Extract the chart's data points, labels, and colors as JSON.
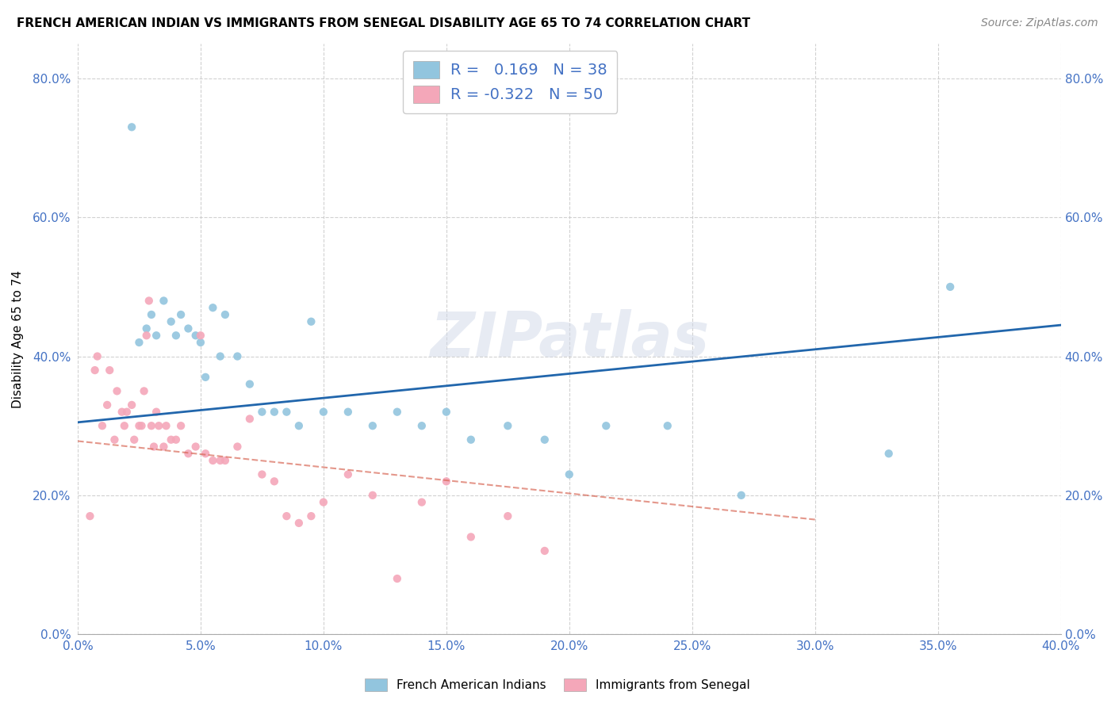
{
  "title": "FRENCH AMERICAN INDIAN VS IMMIGRANTS FROM SENEGAL DISABILITY AGE 65 TO 74 CORRELATION CHART",
  "source": "Source: ZipAtlas.com",
  "xlabel_ticks": [
    "0.0%",
    "5.0%",
    "10.0%",
    "15.0%",
    "20.0%",
    "25.0%",
    "30.0%",
    "35.0%",
    "40.0%"
  ],
  "ylabel_ticks": [
    "0.0%",
    "20.0%",
    "40.0%",
    "60.0%",
    "80.0%"
  ],
  "ylabel": "Disability Age 65 to 74",
  "xlim": [
    0.0,
    0.4
  ],
  "ylim": [
    0.0,
    0.85
  ],
  "legend_label1": "French American Indians",
  "legend_label2": "Immigrants from Senegal",
  "r1": 0.169,
  "n1": 38,
  "r2": -0.322,
  "n2": 50,
  "color_blue": "#92c5de",
  "color_pink": "#f4a7b9",
  "color_line_blue": "#2166ac",
  "color_line_pink": "#d6604d",
  "watermark": "ZIPatlas",
  "blue_line_x0": 0.0,
  "blue_line_y0": 0.305,
  "blue_line_x1": 0.4,
  "blue_line_y1": 0.445,
  "pink_line_x0": 0.0,
  "pink_line_y0": 0.278,
  "pink_line_x1": 0.3,
  "pink_line_y1": 0.165,
  "blue_points_x": [
    0.022,
    0.025,
    0.028,
    0.03,
    0.032,
    0.035,
    0.038,
    0.04,
    0.042,
    0.045,
    0.048,
    0.05,
    0.052,
    0.055,
    0.058,
    0.06,
    0.065,
    0.07,
    0.075,
    0.08,
    0.085,
    0.09,
    0.095,
    0.1,
    0.11,
    0.12,
    0.13,
    0.14,
    0.15,
    0.16,
    0.175,
    0.19,
    0.2,
    0.215,
    0.24,
    0.27,
    0.33,
    0.355
  ],
  "blue_points_y": [
    0.73,
    0.42,
    0.44,
    0.46,
    0.43,
    0.48,
    0.45,
    0.43,
    0.46,
    0.44,
    0.43,
    0.42,
    0.37,
    0.47,
    0.4,
    0.46,
    0.4,
    0.36,
    0.32,
    0.32,
    0.32,
    0.3,
    0.45,
    0.32,
    0.32,
    0.3,
    0.32,
    0.3,
    0.32,
    0.28,
    0.3,
    0.28,
    0.23,
    0.3,
    0.3,
    0.2,
    0.26,
    0.5
  ],
  "pink_points_x": [
    0.005,
    0.007,
    0.008,
    0.01,
    0.012,
    0.013,
    0.015,
    0.016,
    0.018,
    0.019,
    0.02,
    0.022,
    0.023,
    0.025,
    0.026,
    0.027,
    0.028,
    0.029,
    0.03,
    0.031,
    0.032,
    0.033,
    0.035,
    0.036,
    0.038,
    0.04,
    0.042,
    0.045,
    0.048,
    0.05,
    0.052,
    0.055,
    0.058,
    0.06,
    0.065,
    0.07,
    0.075,
    0.08,
    0.085,
    0.09,
    0.095,
    0.1,
    0.11,
    0.12,
    0.13,
    0.14,
    0.15,
    0.16,
    0.175,
    0.19
  ],
  "pink_points_y": [
    0.17,
    0.38,
    0.4,
    0.3,
    0.33,
    0.38,
    0.28,
    0.35,
    0.32,
    0.3,
    0.32,
    0.33,
    0.28,
    0.3,
    0.3,
    0.35,
    0.43,
    0.48,
    0.3,
    0.27,
    0.32,
    0.3,
    0.27,
    0.3,
    0.28,
    0.28,
    0.3,
    0.26,
    0.27,
    0.43,
    0.26,
    0.25,
    0.25,
    0.25,
    0.27,
    0.31,
    0.23,
    0.22,
    0.17,
    0.16,
    0.17,
    0.19,
    0.23,
    0.2,
    0.08,
    0.19,
    0.22,
    0.14,
    0.17,
    0.12
  ]
}
